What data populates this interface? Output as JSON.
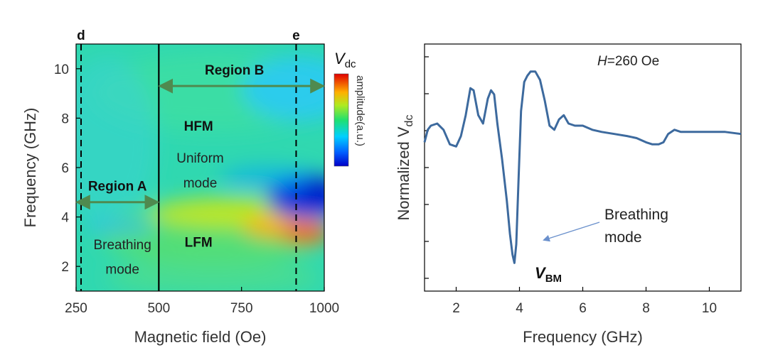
{
  "chart_data": [
    {
      "type": "heatmap",
      "xlabel": "Magnetic field (Oe)",
      "ylabel": "Frequency (GHz)",
      "xlim": [
        250,
        1000
      ],
      "ylim": [
        1,
        11
      ],
      "xticks": [
        "250",
        "500",
        "750",
        "1000"
      ],
      "yticks": [
        "2",
        "4",
        "6",
        "8",
        "10"
      ],
      "colorbar": {
        "title": "V",
        "title_sub": "dc",
        "label": "amplitude(a.u.)"
      },
      "boundary_field": 500,
      "markers": [
        {
          "label": "d",
          "field": 265
        },
        {
          "label": "e",
          "field": 915
        }
      ],
      "regions": [
        {
          "label": "Region A",
          "from": 250,
          "to": 500,
          "frequency": 4.6
        },
        {
          "label": "Region B",
          "from": 500,
          "to": 1000,
          "frequency": 9.3
        }
      ],
      "annotations": [
        {
          "text": "HFM",
          "bold": true,
          "field": 620,
          "frequency": 7.7
        },
        {
          "text": "Uniform",
          "bold": false,
          "field": 625,
          "frequency": 6.4
        },
        {
          "text": "mode",
          "bold": false,
          "field": 625,
          "frequency": 5.4
        },
        {
          "text": "LFM",
          "bold": true,
          "field": 620,
          "frequency": 3.0
        },
        {
          "text": "Breathing",
          "bold": false,
          "field": 390,
          "frequency": 2.9
        },
        {
          "text": "mode",
          "bold": false,
          "field": 390,
          "frequency": 1.9
        }
      ]
    },
    {
      "type": "line",
      "xlabel": "Frequency (GHz)",
      "ylabel": "Normalized V",
      "ylabel_sub": "dc",
      "xlim": [
        1,
        11
      ],
      "ylim": [
        0,
        1
      ],
      "xticks": [
        2,
        4,
        6,
        8,
        10
      ],
      "color": "#3d6a9e",
      "title_field_label": "H",
      "title_value": "=260 Oe",
      "annotation": {
        "line1": "Breathing",
        "line2": "mode"
      },
      "peak_label": "V",
      "peak_label_sub": "BM",
      "series": [
        {
          "x": [
            1.0,
            1.1,
            1.2,
            1.4,
            1.6,
            1.8,
            2.0,
            2.15,
            2.3,
            2.45,
            2.55,
            2.7,
            2.85,
            3.0,
            3.1,
            3.2,
            3.3,
            3.45,
            3.6,
            3.7,
            3.78,
            3.84,
            3.9,
            3.97,
            4.05,
            4.15,
            4.25,
            4.35,
            4.5,
            4.65,
            4.8,
            4.95,
            5.1,
            5.25,
            5.4,
            5.55,
            5.75,
            6.0,
            6.3,
            6.6,
            7.0,
            7.4,
            7.7,
            8.0,
            8.2,
            8.4,
            8.55,
            8.7,
            8.9,
            9.1,
            9.5,
            10.0,
            10.5,
            11.0
          ],
          "y": [
            0.63,
            0.69,
            0.71,
            0.72,
            0.69,
            0.62,
            0.61,
            0.66,
            0.76,
            0.89,
            0.88,
            0.76,
            0.72,
            0.84,
            0.88,
            0.86,
            0.72,
            0.55,
            0.35,
            0.19,
            0.09,
            0.05,
            0.14,
            0.45,
            0.78,
            0.92,
            0.95,
            0.97,
            0.97,
            0.93,
            0.83,
            0.71,
            0.69,
            0.74,
            0.76,
            0.72,
            0.71,
            0.71,
            0.69,
            0.68,
            0.67,
            0.66,
            0.65,
            0.63,
            0.62,
            0.62,
            0.63,
            0.67,
            0.69,
            0.68,
            0.68,
            0.68,
            0.68,
            0.67
          ]
        }
      ]
    }
  ]
}
